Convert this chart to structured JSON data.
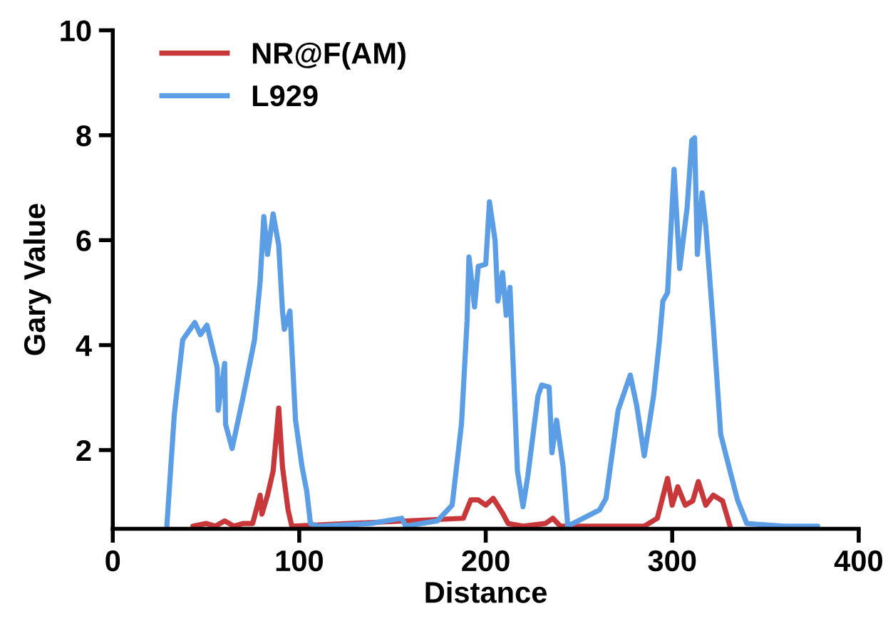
{
  "chart_data": {
    "type": "line",
    "xlabel": "Distance",
    "ylabel": "Gary Value",
    "xlim": [
      0,
      400
    ],
    "xticks": [
      0,
      100,
      200,
      300,
      400
    ],
    "ylim": [
      0.5,
      10
    ],
    "yticks": [
      2,
      4,
      6,
      8,
      10
    ],
    "grid": false,
    "legend": "top left",
    "marker": "none",
    "line_style": "solid",
    "series": [
      {
        "name": "NR@F(AM)",
        "color": "#c8383a",
        "x": [
          43,
          50,
          55,
          60,
          65,
          70,
          75,
          79,
          80,
          83,
          86,
          89,
          91,
          94,
          96,
          188,
          192,
          196,
          200,
          204,
          209,
          212,
          220,
          232,
          236,
          240,
          285,
          292,
          297.5,
          300,
          303,
          307,
          311,
          314,
          318,
          322,
          327,
          331
        ],
        "values": [
          0.55,
          0.6,
          0.55,
          0.65,
          0.55,
          0.6,
          0.6,
          1.14,
          0.78,
          1.14,
          1.6,
          2.8,
          1.68,
          0.86,
          0.55,
          0.7,
          1.05,
          1.05,
          0.95,
          1.08,
          0.8,
          0.6,
          0.55,
          0.6,
          0.7,
          0.55,
          0.55,
          0.7,
          1.46,
          0.95,
          1.3,
          0.95,
          1.03,
          1.4,
          0.95,
          1.14,
          1.03,
          0.55
        ]
      },
      {
        "name": "L929",
        "color": "#5b9ee6",
        "x": [
          29,
          33,
          37.5,
          44,
          47,
          50.5,
          56,
          56.5,
          60,
          60.5,
          64,
          70,
          76,
          79,
          81,
          83,
          86,
          89,
          91,
          92,
          95,
          98,
          101.5,
          104,
          106,
          110,
          138,
          155,
          157,
          174,
          182,
          187,
          190,
          191,
          194,
          196,
          200,
          202,
          205,
          206.5,
          209,
          211,
          213,
          215,
          217,
          220,
          222.5,
          228,
          230,
          234,
          235.5,
          238,
          241.5,
          244,
          261,
          264.5,
          271,
          277.5,
          281,
          285,
          290,
          293,
          295,
          297.5,
          301,
          304,
          308,
          310.5,
          312,
          313.5,
          316,
          318,
          322,
          326,
          331,
          335,
          340,
          360,
          378
        ],
        "values": [
          0.55,
          2.68,
          4.1,
          4.43,
          4.2,
          4.38,
          3.57,
          2.76,
          3.65,
          2.49,
          2.03,
          3.03,
          4.1,
          5.2,
          6.45,
          5.73,
          6.5,
          5.9,
          4.65,
          4.3,
          4.65,
          2.57,
          1.68,
          1.22,
          0.6,
          0.55,
          0.6,
          0.7,
          0.55,
          0.65,
          0.95,
          2.5,
          4.46,
          5.68,
          4.73,
          5.5,
          5.54,
          6.73,
          6.0,
          4.84,
          5.38,
          4.57,
          5.1,
          3.38,
          1.6,
          0.92,
          1.49,
          3.03,
          3.24,
          3.2,
          1.95,
          2.57,
          1.68,
          0.55,
          0.86,
          1.08,
          2.76,
          3.43,
          2.84,
          1.89,
          3.03,
          4.03,
          4.84,
          5.0,
          7.35,
          5.46,
          6.62,
          7.9,
          7.95,
          5.73,
          6.9,
          6.27,
          4.38,
          2.3,
          1.6,
          1.05,
          0.6,
          0.55,
          0.55
        ]
      }
    ]
  }
}
